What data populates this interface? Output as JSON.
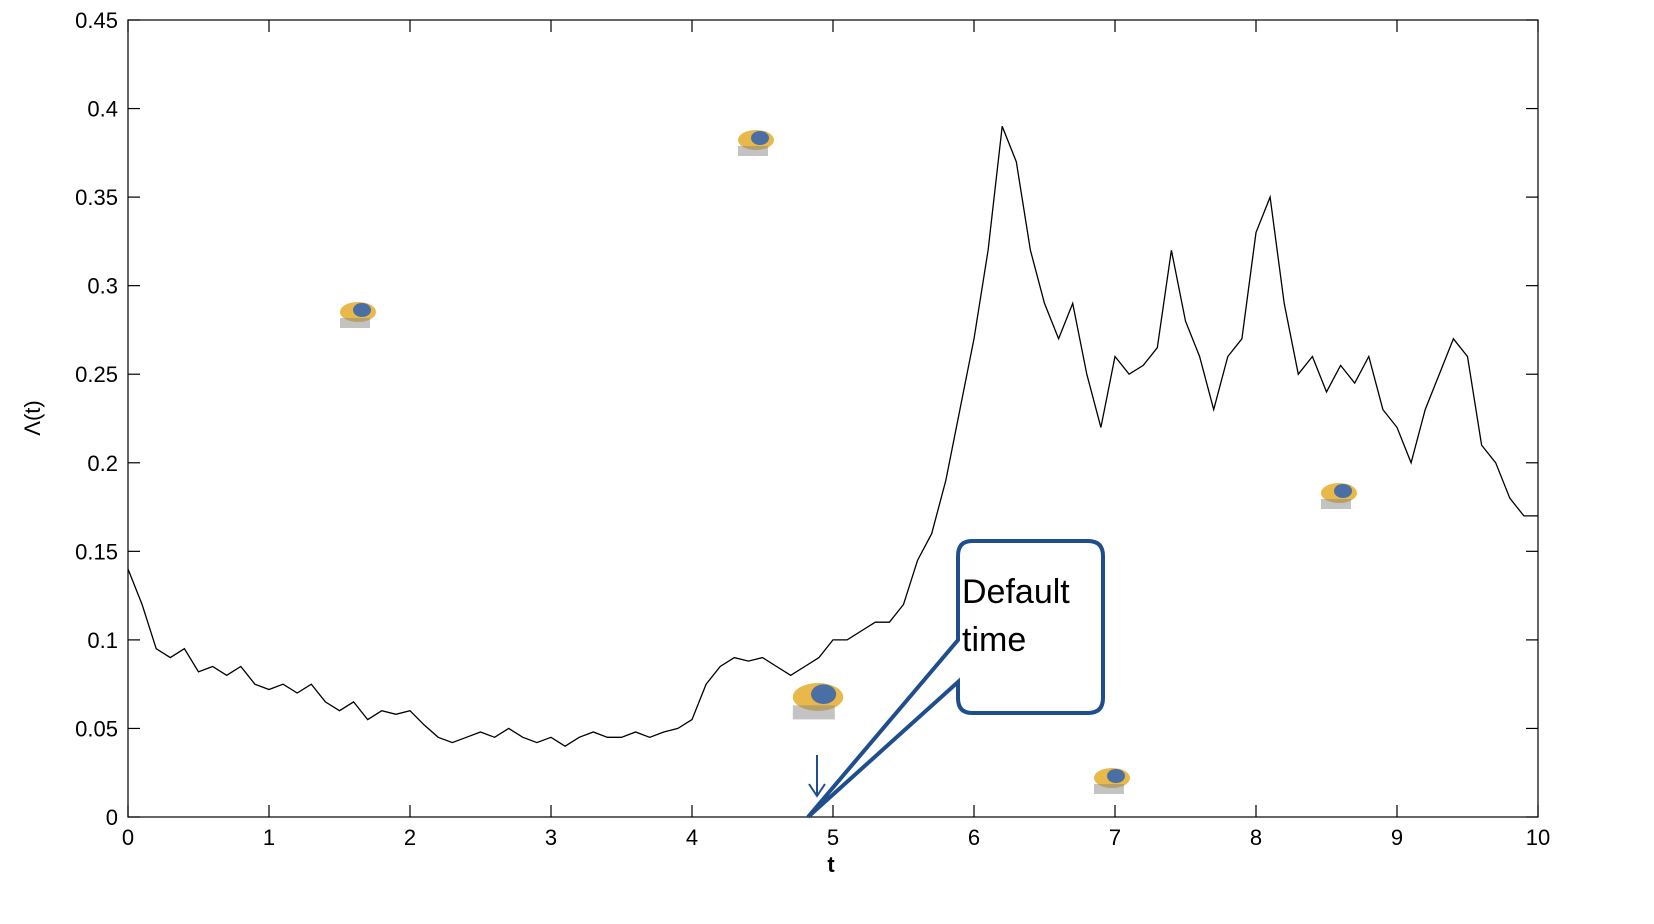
{
  "chart_data": {
    "type": "line",
    "xlabel": "t",
    "ylabel": "Λ(t)",
    "annotation": "Default time",
    "color": "#000000",
    "x": [
      0,
      0.1,
      0.2,
      0.3,
      0.4,
      0.5,
      0.6,
      0.7,
      0.8,
      0.9,
      1,
      1.1,
      1.2,
      1.3,
      1.4,
      1.5,
      1.6,
      1.7,
      1.8,
      1.9,
      2,
      2.1,
      2.2,
      2.3,
      2.4,
      2.5,
      2.6,
      2.7,
      2.8,
      2.9,
      3,
      3.1,
      3.2,
      3.3,
      3.4,
      3.5,
      3.6,
      3.7,
      3.8,
      3.9,
      4,
      4.1,
      4.2,
      4.3,
      4.4,
      4.5,
      4.6,
      4.7,
      4.8,
      4.9,
      5,
      5.1,
      5.2,
      5.3,
      5.4,
      5.5,
      5.6,
      5.7,
      5.8,
      5.9,
      6,
      6.1,
      6.2,
      6.3,
      6.4,
      6.5,
      6.6,
      6.7,
      6.8,
      6.9,
      7,
      7.1,
      7.2,
      7.3,
      7.4,
      7.5,
      7.6,
      7.7,
      7.8,
      7.9,
      8,
      8.1,
      8.2,
      8.3,
      8.4,
      8.5,
      8.6,
      8.7,
      8.8,
      8.9,
      9,
      9.1,
      9.2,
      9.3,
      9.4,
      9.5,
      9.6,
      9.7,
      9.8,
      9.9,
      10
    ],
    "values": [
      0.14,
      0.12,
      0.095,
      0.09,
      0.095,
      0.082,
      0.085,
      0.08,
      0.085,
      0.075,
      0.072,
      0.075,
      0.07,
      0.075,
      0.065,
      0.06,
      0.065,
      0.055,
      0.06,
      0.058,
      0.06,
      0.052,
      0.045,
      0.042,
      0.045,
      0.048,
      0.045,
      0.05,
      0.045,
      0.042,
      0.045,
      0.04,
      0.045,
      0.048,
      0.045,
      0.045,
      0.048,
      0.045,
      0.048,
      0.05,
      0.055,
      0.075,
      0.085,
      0.09,
      0.088,
      0.09,
      0.085,
      0.08,
      0.085,
      0.09,
      0.1,
      0.1,
      0.105,
      0.11,
      0.11,
      0.12,
      0.145,
      0.16,
      0.19,
      0.23,
      0.27,
      0.32,
      0.39,
      0.37,
      0.32,
      0.29,
      0.27,
      0.29,
      0.25,
      0.22,
      0.26,
      0.25,
      0.255,
      0.265,
      0.32,
      0.28,
      0.26,
      0.23,
      0.26,
      0.27,
      0.33,
      0.35,
      0.29,
      0.25,
      0.26,
      0.24,
      0.255,
      0.245,
      0.26,
      0.23,
      0.22,
      0.2,
      0.23,
      0.25,
      0.27,
      0.26,
      0.21,
      0.2,
      0.18,
      0.17,
      0.17
    ],
    "xlim": [
      0,
      10
    ],
    "ylim": [
      0,
      0.45
    ],
    "xticks": [
      0,
      1,
      2,
      3,
      4,
      5,
      6,
      7,
      8,
      9,
      10
    ],
    "yticks": [
      0,
      0.05,
      0.1,
      0.15,
      0.2,
      0.25,
      0.3,
      0.35,
      0.4,
      0.45
    ],
    "grid": false
  }
}
